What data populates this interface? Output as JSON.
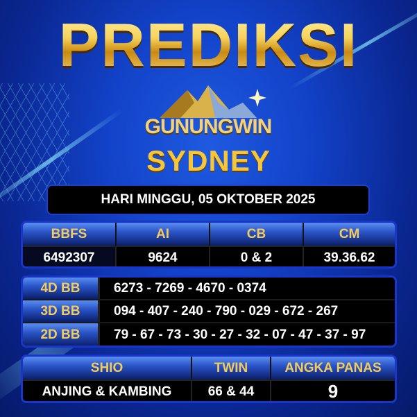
{
  "title": "PREDIKSI",
  "brand": "GUNUNGWIN",
  "market": "SYDNEY",
  "date": "HARI MINGGU, 05 OKTOBER 2025",
  "colors": {
    "gold": "#f5cc5a",
    "background": "#1242c8",
    "panel": "#000000",
    "border": "#1a36c8"
  },
  "summary": {
    "headers": [
      "BBFS",
      "AI",
      "CB",
      "CM"
    ],
    "values": [
      "6492307",
      "9624",
      "0 & 2",
      "39.36.62"
    ]
  },
  "bb": [
    {
      "label": "4D BB",
      "value": "6273 - 7269 - 4670 - 0374"
    },
    {
      "label": "3D BB",
      "value": "094 - 407 - 240 - 790 - 029 - 672 - 267"
    },
    {
      "label": "2D BB",
      "value": "79 - 67 - 73 - 30 - 27 - 32 - 07 - 47 - 37 - 97"
    }
  ],
  "extra": {
    "headers": [
      "SHIO",
      "TWIN",
      "ANGKA PANAS"
    ],
    "values": [
      "ANJING & KAMBING",
      "66 & 44",
      "9"
    ]
  }
}
